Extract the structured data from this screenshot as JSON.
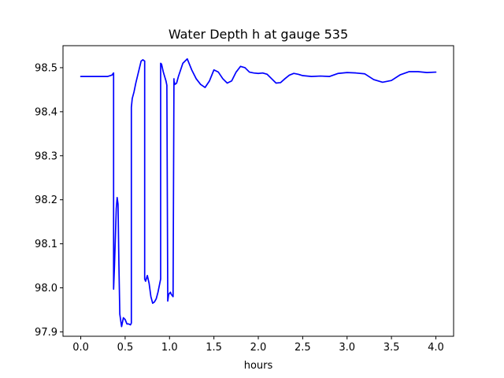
{
  "chart_data": {
    "type": "line",
    "title": "Water Depth h at gauge 535",
    "xlabel": "hours",
    "ylabel": "",
    "xlim": [
      -0.2,
      4.2
    ],
    "ylim": [
      97.89,
      98.55
    ],
    "xticks": [
      0.0,
      0.5,
      1.0,
      1.5,
      2.0,
      2.5,
      3.0,
      3.5,
      4.0
    ],
    "xtick_labels": [
      "0.0",
      "0.5",
      "1.0",
      "1.5",
      "2.0",
      "2.5",
      "3.0",
      "3.5",
      "4.0"
    ],
    "yticks": [
      97.9,
      98.0,
      98.1,
      98.2,
      98.3,
      98.4,
      98.5
    ],
    "ytick_labels": [
      "97.9",
      "98.0",
      "98.1",
      "98.2",
      "98.3",
      "98.4",
      "98.5"
    ],
    "grid": false,
    "series": [
      {
        "color": "#0000ff",
        "x": [
          0.0,
          0.2,
          0.3,
          0.35,
          0.37,
          0.37,
          0.38,
          0.4,
          0.41,
          0.42,
          0.43,
          0.44,
          0.46,
          0.48,
          0.5,
          0.52,
          0.54,
          0.56,
          0.57,
          0.57,
          0.58,
          0.6,
          0.62,
          0.65,
          0.68,
          0.7,
          0.72,
          0.72,
          0.73,
          0.75,
          0.77,
          0.79,
          0.81,
          0.83,
          0.85,
          0.87,
          0.9,
          0.9,
          0.91,
          0.93,
          0.96,
          0.97,
          0.98,
          0.98,
          0.99,
          1.01,
          1.02,
          1.04,
          1.05,
          1.05,
          1.06,
          1.08,
          1.1,
          1.15,
          1.2,
          1.25,
          1.3,
          1.35,
          1.4,
          1.45,
          1.5,
          1.55,
          1.6,
          1.65,
          1.7,
          1.75,
          1.8,
          1.85,
          1.9,
          1.95,
          2.0,
          2.05,
          2.1,
          2.15,
          2.2,
          2.25,
          2.3,
          2.35,
          2.4,
          2.45,
          2.5,
          2.6,
          2.7,
          2.8,
          2.9,
          3.0,
          3.1,
          3.2,
          3.3,
          3.4,
          3.5,
          3.6,
          3.7,
          3.8,
          3.9,
          4.0
        ],
        "y": [
          98.48,
          98.48,
          98.48,
          98.483,
          98.488,
          97.997,
          98.05,
          98.18,
          98.205,
          98.19,
          98.05,
          97.94,
          97.912,
          97.932,
          97.928,
          97.918,
          97.918,
          97.916,
          97.92,
          98.41,
          98.43,
          98.445,
          98.465,
          98.49,
          98.515,
          98.518,
          98.515,
          98.02,
          98.015,
          98.028,
          98.01,
          97.98,
          97.965,
          97.968,
          97.975,
          97.99,
          98.02,
          98.51,
          98.508,
          98.49,
          98.47,
          98.46,
          97.975,
          97.97,
          97.985,
          97.99,
          97.985,
          97.98,
          98.475,
          98.47,
          98.462,
          98.465,
          98.48,
          98.51,
          98.52,
          98.495,
          98.475,
          98.462,
          98.455,
          98.47,
          98.495,
          98.49,
          98.475,
          98.465,
          98.47,
          98.49,
          98.503,
          98.5,
          98.49,
          98.488,
          98.487,
          98.488,
          98.485,
          98.475,
          98.465,
          98.466,
          98.475,
          98.483,
          98.487,
          98.485,
          98.482,
          98.48,
          98.481,
          98.48,
          98.487,
          98.489,
          98.488,
          98.486,
          98.473,
          98.467,
          98.471,
          98.484,
          98.491,
          98.491,
          98.489,
          98.49
        ]
      }
    ]
  }
}
